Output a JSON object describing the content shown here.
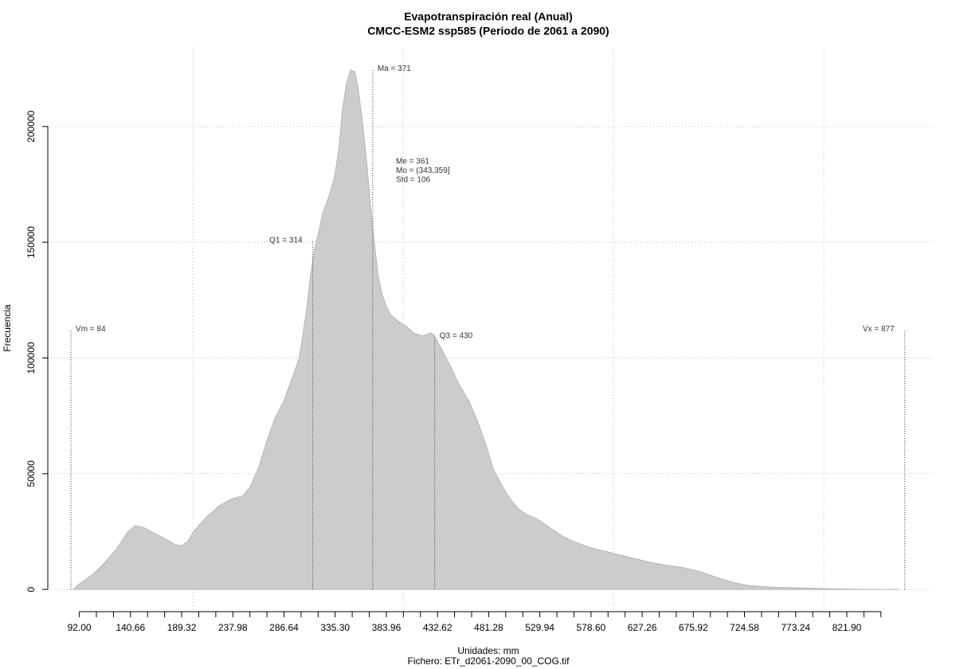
{
  "chart_data": {
    "type": "area",
    "title": "Evapotranspiración real (Anual)",
    "subtitle": "CMCC-ESM2 ssp585 (Periodo de 2061 a 2090)",
    "x_label": "Unidades: mm",
    "caption": "Fichero: ETr_d2061-2090_00_COG.tif",
    "y_label": "Frecuencia",
    "color": "#cccccc",
    "x": [
      86,
      92,
      104,
      115,
      127,
      138,
      145,
      153,
      164,
      176,
      183,
      189,
      195,
      202,
      214,
      225,
      236,
      248,
      255,
      263,
      270,
      278,
      286,
      293,
      301,
      304,
      308,
      312,
      316,
      320,
      323,
      327,
      331,
      335,
      339,
      342,
      346,
      350,
      354,
      357,
      361,
      365,
      369,
      373,
      376,
      380,
      384,
      388,
      395,
      403,
      410,
      418,
      426,
      429,
      437,
      445,
      452,
      463,
      471,
      479,
      486,
      494,
      501,
      509,
      516,
      528,
      539,
      551,
      562,
      577,
      592,
      607,
      622,
      638,
      653,
      668,
      683,
      698,
      713,
      728,
      751,
      774,
      804,
      842,
      872
    ],
    "values": [
      0,
      2400,
      6200,
      11000,
      17200,
      24800,
      27500,
      26800,
      24100,
      21300,
      19300,
      18900,
      20700,
      25800,
      31700,
      36100,
      38900,
      40600,
      44800,
      53300,
      63700,
      74000,
      80900,
      89500,
      99800,
      108400,
      120500,
      136000,
      148000,
      154900,
      161800,
      166900,
      172100,
      179000,
      191000,
      206500,
      218600,
      224400,
      223700,
      216800,
      203100,
      185900,
      165200,
      148000,
      136000,
      127400,
      122200,
      118800,
      116000,
      113600,
      110800,
      109500,
      110800,
      110100,
      103300,
      96400,
      89500,
      80900,
      72300,
      62000,
      51600,
      44800,
      39600,
      35100,
      32700,
      30300,
      26800,
      23100,
      20700,
      18200,
      16500,
      14800,
      13100,
      11400,
      10300,
      9300,
      7600,
      5200,
      3100,
      1700,
      1000,
      700,
      300,
      0,
      0
    ],
    "xlim": [
      62,
      903
    ],
    "ylim": [
      -9600,
      234000
    ],
    "xticks": [
      {
        "value": 92,
        "label": "92.00"
      },
      140.66,
      189.32,
      237.98,
      286.64,
      {
        "value": 335.3,
        "label": "335.30"
      },
      383.96,
      432.62,
      481.28,
      529.94,
      {
        "value": 578.6,
        "label": "578.60"
      },
      627.26,
      675.92,
      724.58,
      773.24,
      {
        "value": 821.9,
        "label": "821.90"
      }
    ],
    "xminor_ticks": [
      108.22,
      124.44,
      156.88,
      173.1,
      205.54,
      221.76,
      254.2,
      270.42,
      302.86,
      319.08,
      351.52,
      367.74,
      400.18,
      416.4,
      448.84,
      465.06,
      497.5,
      513.72,
      546.16,
      562.38,
      594.82,
      611.04,
      643.48,
      659.7,
      692.14,
      708.36,
      740.8,
      757.02,
      789.46,
      805.68,
      838.12,
      854.34
    ],
    "xgrid": [
      200,
      400,
      600,
      800
    ],
    "yticks": [
      0,
      50000,
      100000,
      150000,
      200000
    ],
    "grid": true,
    "markers": [
      {
        "label": "Vm = 84",
        "x": 84,
        "top": 112500,
        "side": "right"
      },
      {
        "label": "Q1 = 314",
        "x": 314,
        "top": 150800,
        "side": "left"
      },
      {
        "label": "Ma = 371",
        "x": 371,
        "top": 225000,
        "side": "right"
      },
      {
        "label": "Q3 = 430",
        "x": 430,
        "top": 109500,
        "side": "right"
      },
      {
        "label": "Vx = 877",
        "x": 877,
        "top": 112500,
        "side": "left"
      }
    ],
    "stats": [
      "Me = 361",
      "Mo = (343,359]",
      "Std = 106"
    ]
  }
}
